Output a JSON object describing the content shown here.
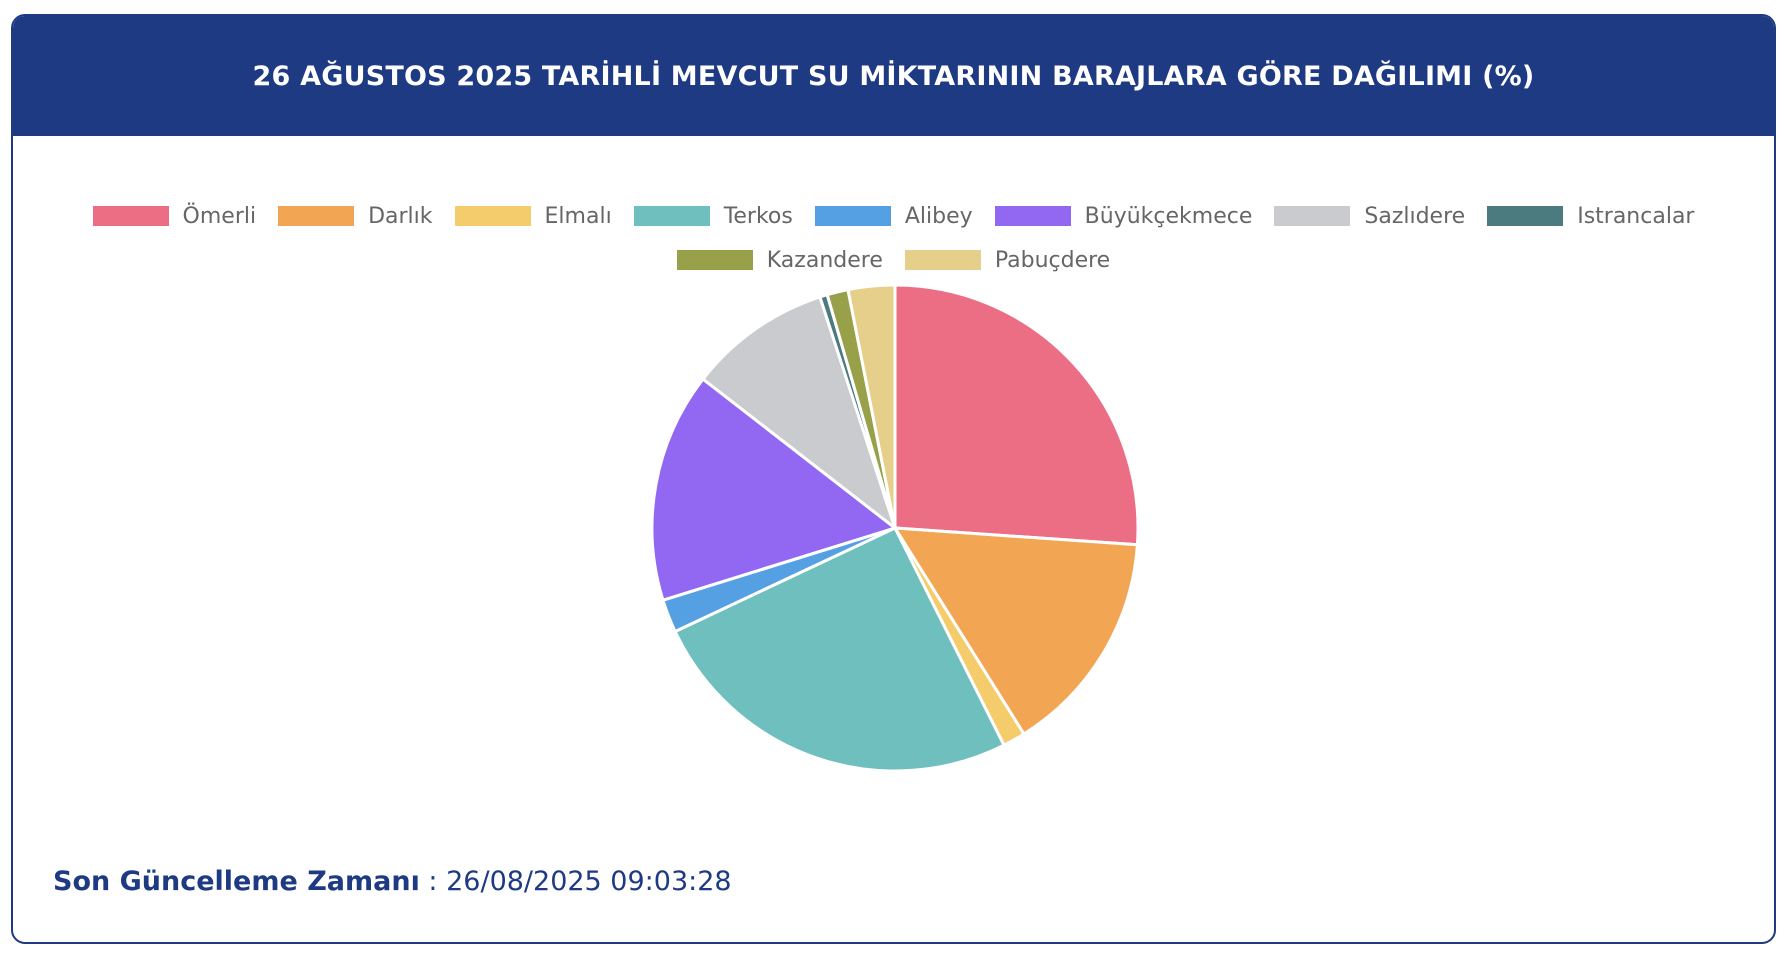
{
  "header": {
    "title": "26 AĞUSTOS 2025 TARİHLİ MEVCUT SU MİKTARININ BARAJLARA GÖRE DAĞILIMI (%)"
  },
  "footer": {
    "label": "Son Güncelleme Zamanı",
    "separator": " : ",
    "value": "26/08/2025 09:03:28"
  },
  "chart_data": {
    "type": "pie",
    "title": "26 AĞUSTOS 2025 TARİHLİ MEVCUT SU MİKTARININ BARAJLARA GÖRE DAĞILIMI (%)",
    "legend_position": "top",
    "categories": [
      "Ömerli",
      "Darlık",
      "Elmalı",
      "Terkos",
      "Alibey",
      "Büyükçekmece",
      "Sazlıdere",
      "Istrancalar",
      "Kazandere",
      "Pabuçdere"
    ],
    "values": [
      26.1,
      15.0,
      1.5,
      25.4,
      2.2,
      15.3,
      9.5,
      0.5,
      1.4,
      3.1
    ],
    "colors": [
      "#ec6e85",
      "#f2a654",
      "#f5cc6b",
      "#6fbfbf",
      "#55a0e3",
      "#9268f2",
      "#c9cbcf",
      "#4b7a7f",
      "#99a04a",
      "#e6cf8a"
    ]
  }
}
